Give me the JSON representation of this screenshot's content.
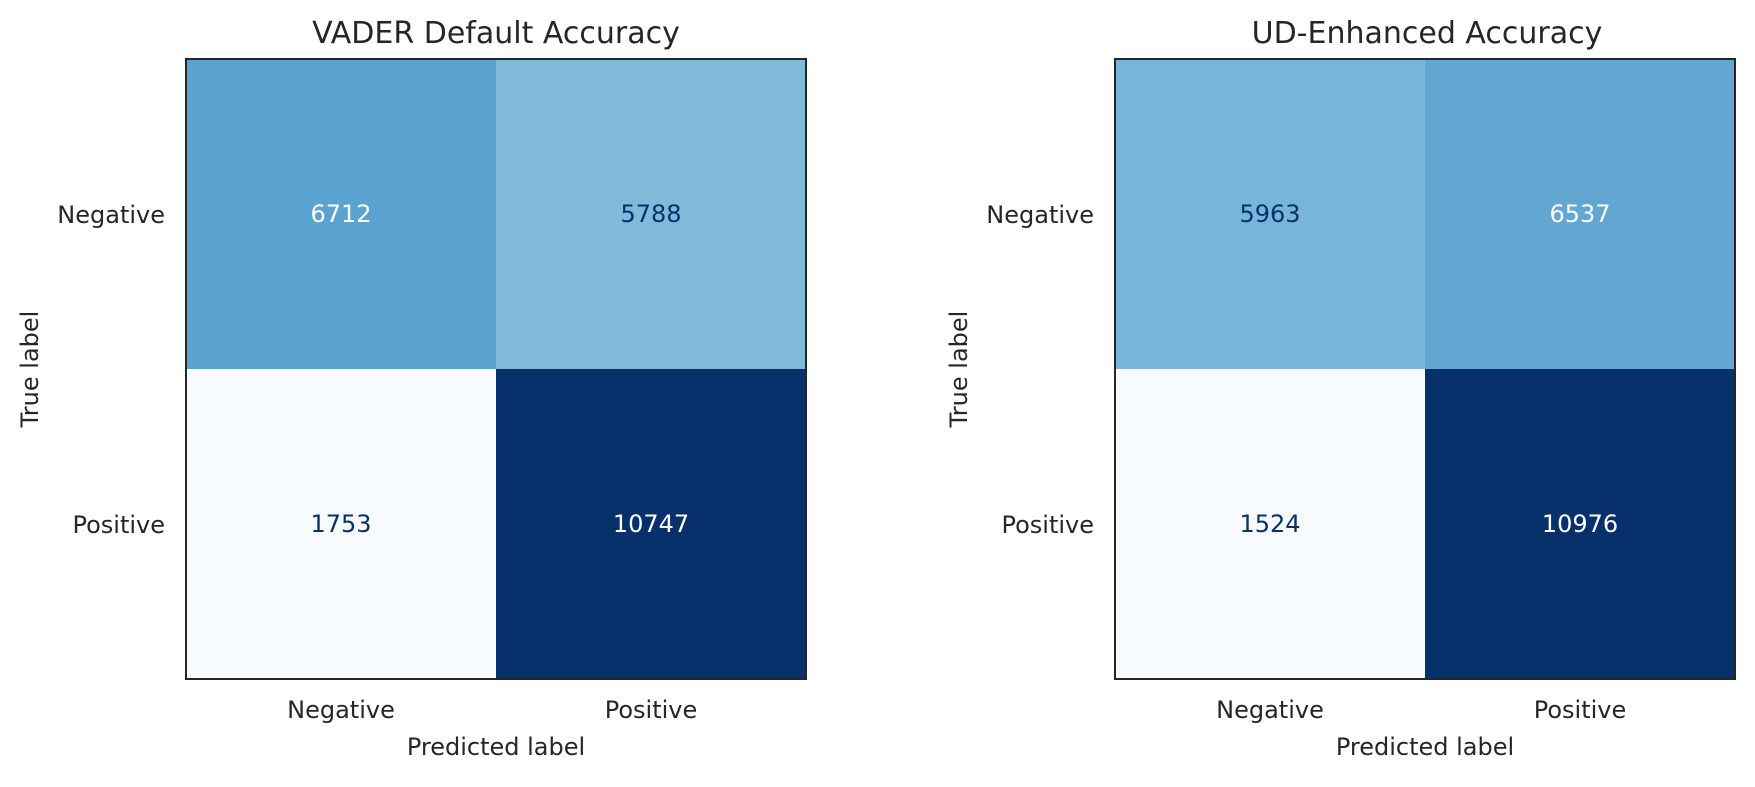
{
  "colors": {
    "cmap": "Blues",
    "cmap_low": "#f7fbff",
    "cmap_high": "#08306b",
    "text_on_light": "#08306b",
    "text_on_dark": "#ffffff",
    "frame": "#262626"
  },
  "chart_data": [
    {
      "type": "heatmap",
      "title": "VADER Default Accuracy",
      "xlabel": "Predicted label",
      "ylabel": "True label",
      "x_categories": [
        "Negative",
        "Positive"
      ],
      "y_categories": [
        "Negative",
        "Positive"
      ],
      "matrix": [
        [
          6712,
          5788
        ],
        [
          1753,
          10747
        ]
      ],
      "colorbar": false,
      "grid": false
    },
    {
      "type": "heatmap",
      "title": "UD-Enhanced Accuracy",
      "xlabel": "Predicted label",
      "ylabel": "True label",
      "x_categories": [
        "Negative",
        "Positive"
      ],
      "y_categories": [
        "Negative",
        "Positive"
      ],
      "matrix": [
        [
          5963,
          6537
        ],
        [
          1524,
          10976
        ]
      ],
      "colorbar": false,
      "grid": false
    }
  ]
}
